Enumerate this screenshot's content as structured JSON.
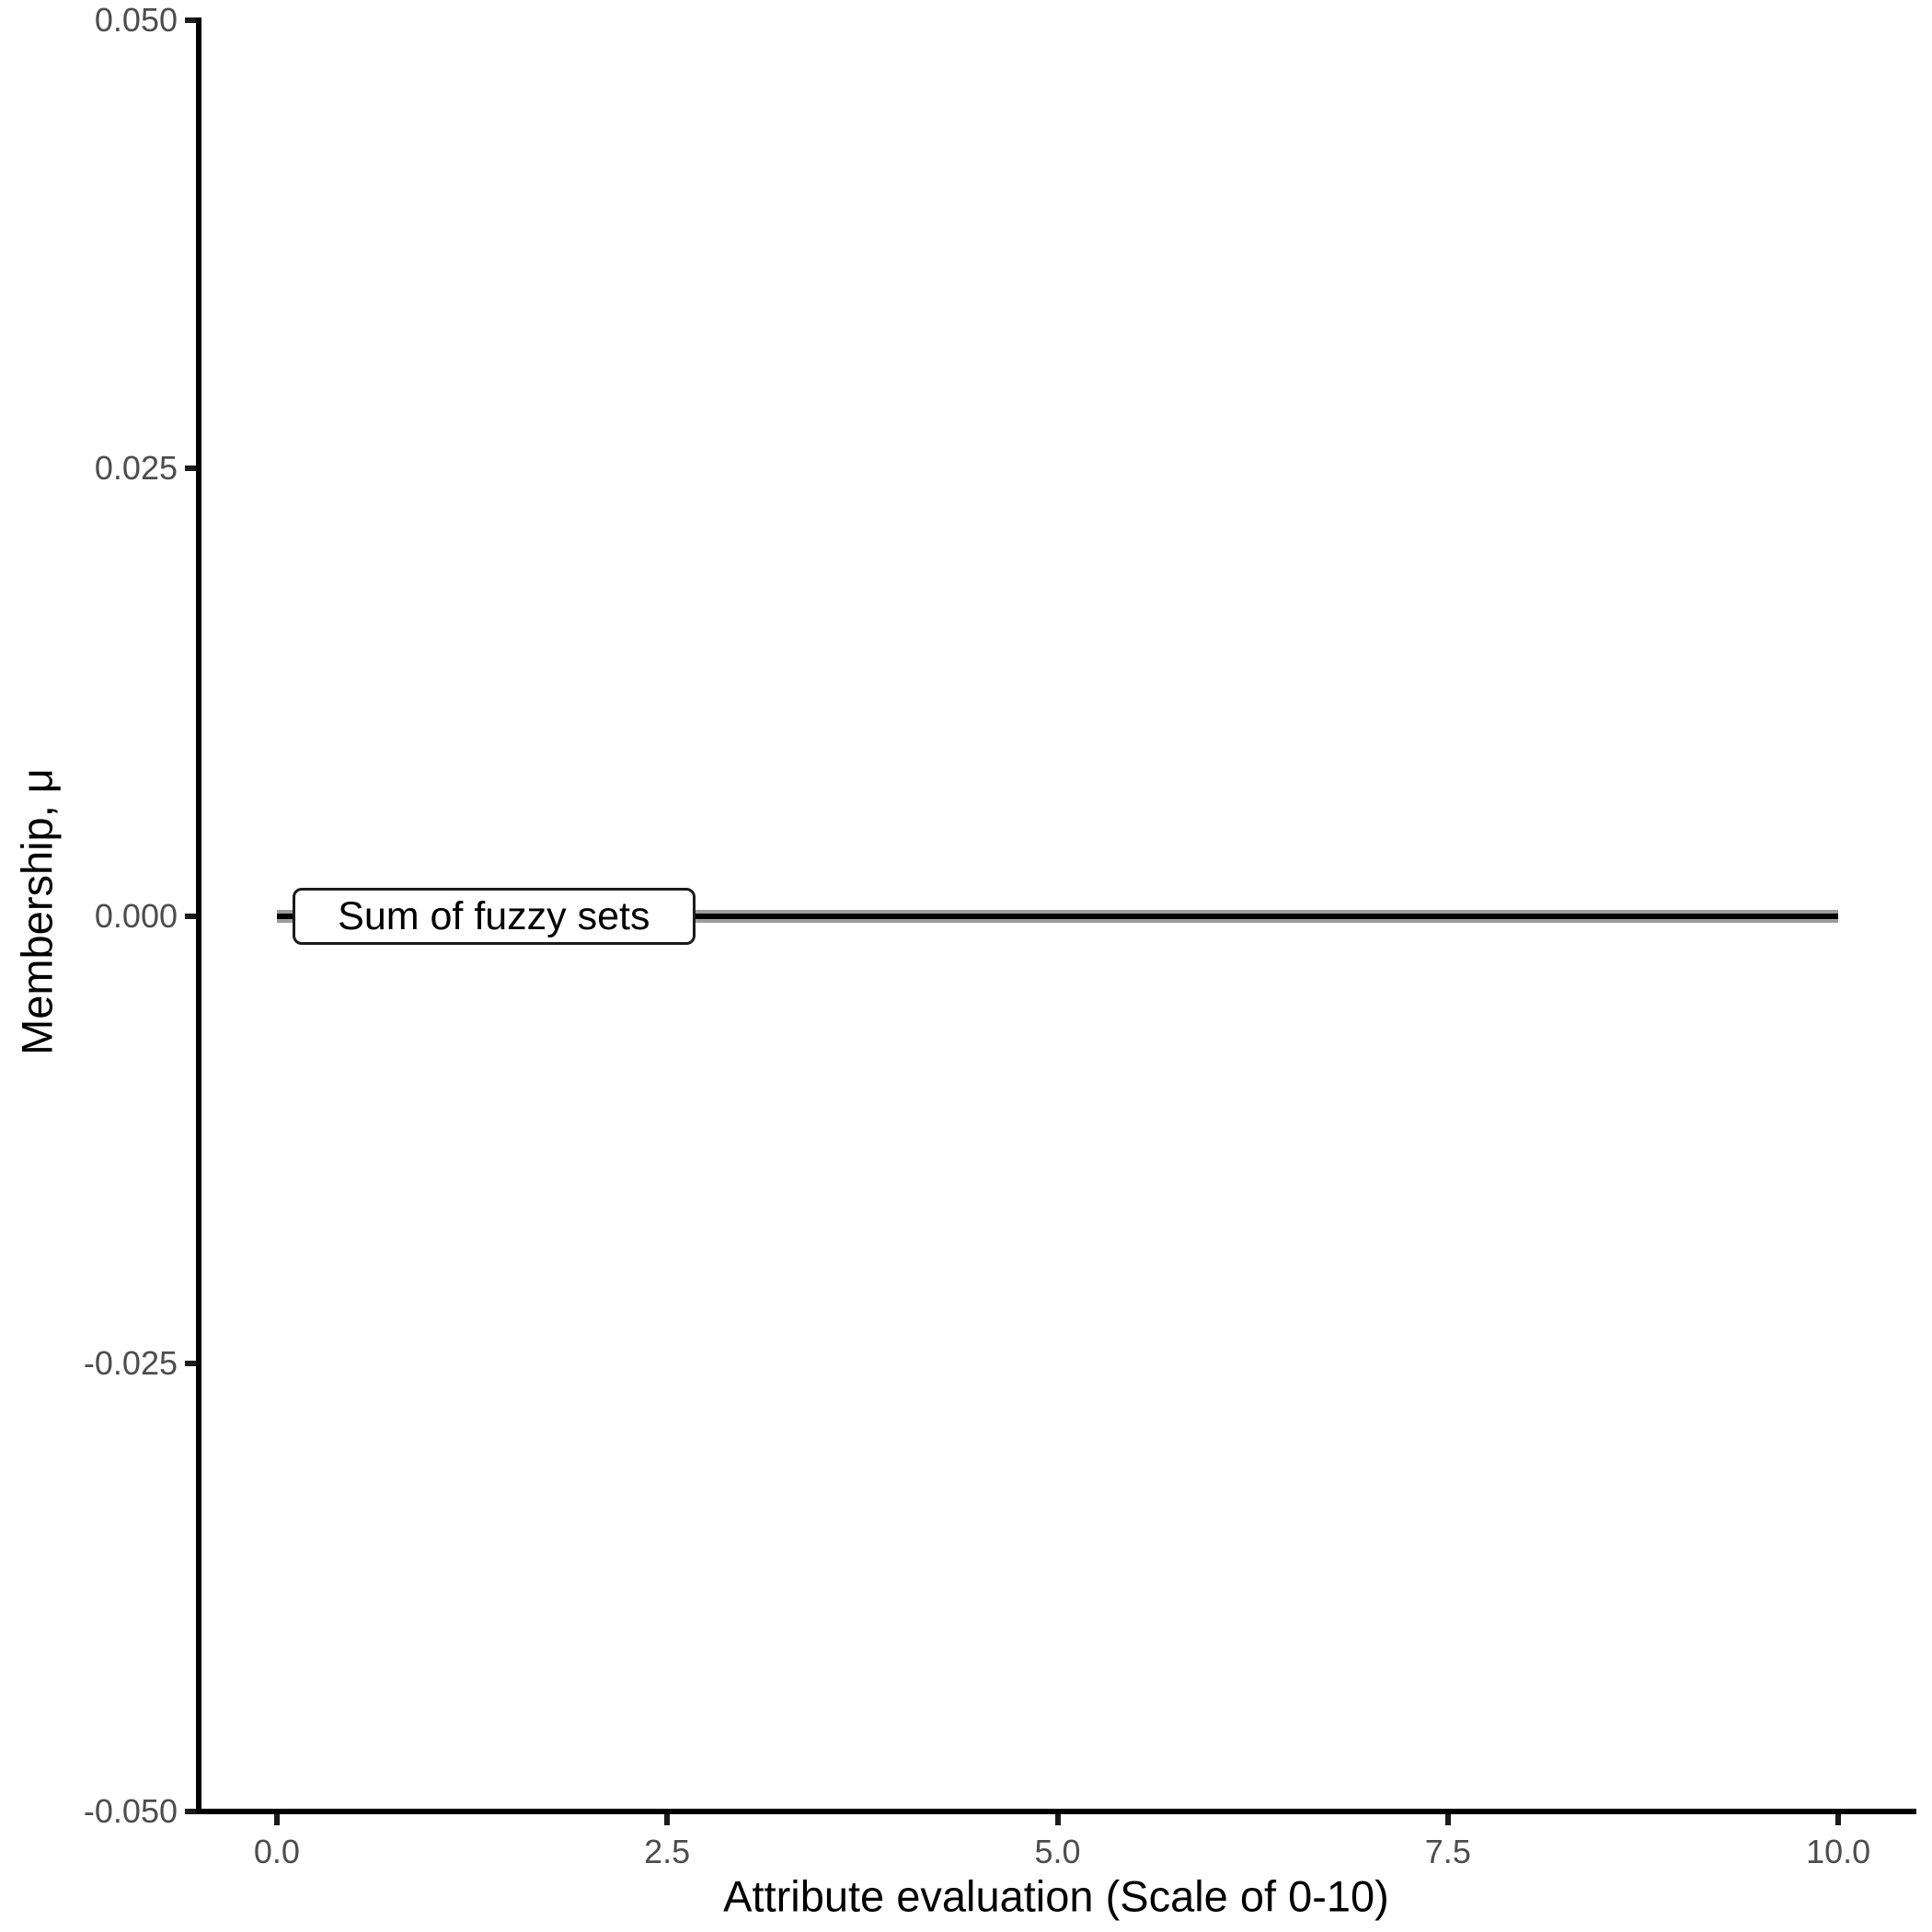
{
  "background_color": "#ffffff",
  "chart_data": {
    "type": "line",
    "title": "",
    "xlabel": "Attribute evaluation (Scale of 0-10)",
    "ylabel": "Membership, μ",
    "xlim": [
      -0.5,
      10.5
    ],
    "ylim": [
      -0.05,
      0.05
    ],
    "grid": false,
    "legend": "none",
    "x_ticks": {
      "values": [
        0,
        2.5,
        5,
        7.5,
        10
      ],
      "labels": [
        "0.0",
        "2.5",
        "5.0",
        "7.5",
        "10.0"
      ]
    },
    "y_ticks": {
      "values": [
        0.05,
        0.025,
        0,
        -0.025,
        -0.05
      ],
      "labels": [
        "0.050",
        "0.025",
        "0.000",
        "-0.025",
        "-0.050"
      ]
    },
    "series": [
      {
        "name": "overlapping-fuzzy-sets",
        "x": [
          0,
          10
        ],
        "y": [
          0,
          0
        ],
        "color": "#9c9c9c",
        "stroke_px": 14
      },
      {
        "name": "sum-of-fuzzy-sets",
        "x": [
          0,
          10
        ],
        "y": [
          0,
          0
        ],
        "color": "#000000",
        "stroke_px": 6
      }
    ],
    "annotation": {
      "label": "Sum of fuzzy sets",
      "x": 0.1,
      "y": 0
    },
    "axis_color": "#000000",
    "tick_color": "#1a1a1a",
    "tick_label_color": "#4d4d4d",
    "axis_title_color": "#000000"
  }
}
